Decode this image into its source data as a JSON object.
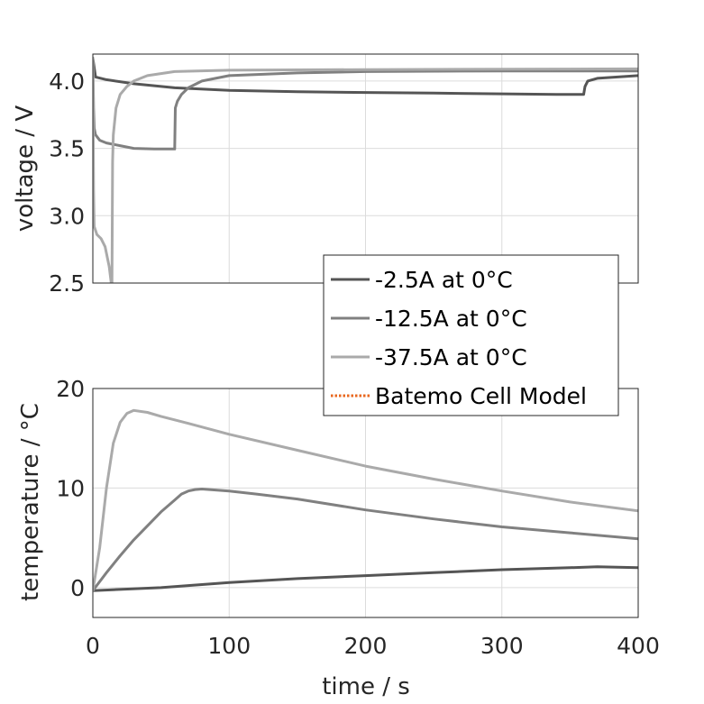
{
  "chart_data": [
    {
      "type": "line",
      "ylabel": "voltage / V",
      "xlim": [
        0,
        400
      ],
      "ylim": [
        2.5,
        4.2
      ],
      "xticks": [
        "0",
        "100",
        "200",
        "300",
        "400"
      ],
      "yticks": [
        "2.5",
        "3.0",
        "3.5",
        "4.0"
      ],
      "grid": true,
      "series": [
        {
          "name": "-2.5A at 0°C",
          "color": "#555555",
          "x": [
            0,
            2,
            10,
            30,
            60,
            100,
            150,
            200,
            250,
            300,
            340,
            360,
            361,
            363,
            370,
            385,
            400
          ],
          "y": [
            4.17,
            4.03,
            4.01,
            3.98,
            3.95,
            3.93,
            3.92,
            3.915,
            3.91,
            3.905,
            3.9,
            3.9,
            3.96,
            4.0,
            4.02,
            4.03,
            4.04
          ]
        },
        {
          "name": "-12.5A at 0°C",
          "color": "#808080",
          "x": [
            0,
            0.5,
            1,
            2,
            5,
            10,
            20,
            30,
            45,
            55,
            60,
            60.5,
            62,
            65,
            70,
            80,
            100,
            150,
            200,
            300,
            400
          ],
          "y": [
            4.17,
            3.8,
            3.65,
            3.6,
            3.56,
            3.54,
            3.52,
            3.5,
            3.495,
            3.495,
            3.495,
            3.8,
            3.85,
            3.9,
            3.95,
            4.0,
            4.04,
            4.06,
            4.07,
            4.075,
            4.075
          ]
        },
        {
          "name": "-37.5A at 0°C",
          "color": "#aaaaaa",
          "x": [
            0,
            0.5,
            1,
            3,
            6,
            9,
            12,
            13.5,
            14,
            14.5,
            15,
            17,
            20,
            25,
            30,
            40,
            60,
            100,
            200,
            400
          ],
          "y": [
            4.17,
            3.2,
            2.92,
            2.86,
            2.83,
            2.77,
            2.62,
            2.5,
            2.5,
            3.4,
            3.6,
            3.8,
            3.9,
            3.96,
            4.0,
            4.04,
            4.07,
            4.08,
            4.085,
            4.09
          ]
        }
      ]
    },
    {
      "type": "line",
      "xlabel": "time / s",
      "ylabel": "temperature / °C",
      "xlim": [
        0,
        400
      ],
      "ylim": [
        -3,
        20
      ],
      "xticks": [
        "0",
        "100",
        "200",
        "300",
        "400"
      ],
      "yticks": [
        "0",
        "10",
        "20"
      ],
      "grid": true,
      "series": [
        {
          "name": "-2.5A at 0°C",
          "color": "#555555",
          "x": [
            0,
            50,
            100,
            150,
            200,
            250,
            300,
            350,
            370,
            400
          ],
          "y": [
            -0.3,
            0.0,
            0.5,
            0.9,
            1.2,
            1.5,
            1.8,
            2.0,
            2.1,
            2.0
          ]
        },
        {
          "name": "-12.5A at 0°C",
          "color": "#808080",
          "x": [
            0,
            10,
            20,
            30,
            40,
            50,
            60,
            65,
            70,
            75,
            80,
            90,
            100,
            120,
            150,
            200,
            250,
            300,
            350,
            400
          ],
          "y": [
            -0.3,
            1.5,
            3.2,
            4.8,
            6.2,
            7.6,
            8.8,
            9.4,
            9.7,
            9.85,
            9.9,
            9.8,
            9.7,
            9.4,
            8.9,
            7.8,
            6.9,
            6.1,
            5.5,
            4.9
          ]
        },
        {
          "name": "-37.5A at 0°C",
          "color": "#aaaaaa",
          "x": [
            0,
            5,
            10,
            15,
            20,
            25,
            30,
            40,
            50,
            70,
            100,
            150,
            200,
            250,
            300,
            350,
            400
          ],
          "y": [
            -0.3,
            4.0,
            10.0,
            14.5,
            16.6,
            17.5,
            17.8,
            17.6,
            17.2,
            16.5,
            15.4,
            13.8,
            12.2,
            10.9,
            9.7,
            8.6,
            7.7
          ]
        }
      ]
    }
  ],
  "legend": {
    "placement": "right-center",
    "entries": [
      {
        "label": "-2.5A at 0°C",
        "color": "#555555",
        "style": "solid"
      },
      {
        "label": "-12.5A at 0°C",
        "color": "#808080",
        "style": "solid"
      },
      {
        "label": "-37.5A at 0°C",
        "color": "#aaaaaa",
        "style": "solid"
      },
      {
        "label": "Batemo Cell Model",
        "color": "#e8671e",
        "style": "dotted"
      }
    ]
  }
}
